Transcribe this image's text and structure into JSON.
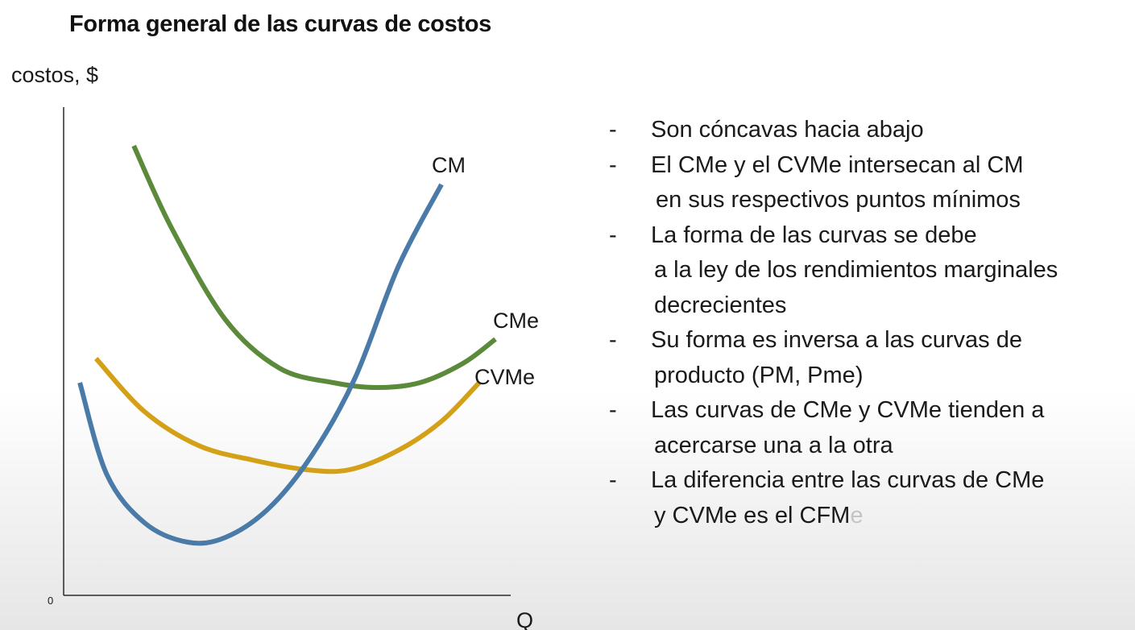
{
  "title": "Forma general de las curvas de costos",
  "chart_data": {
    "type": "line",
    "ylabel": "costos, $",
    "xlabel": "Q",
    "origin_label": "0",
    "series": [
      {
        "name": "CM",
        "color": "#4a7ba8",
        "x": [
          0.3,
          0.8,
          1.5,
          2.3,
          3.0,
          3.8,
          4.6,
          5.4,
          6.2,
          7.0
        ],
        "y": [
          4.4,
          2.5,
          1.5,
          1.1,
          1.2,
          1.8,
          2.9,
          4.5,
          6.8,
          8.5
        ]
      },
      {
        "name": "CMe",
        "color": "#5b8a3a",
        "x": [
          1.3,
          2.0,
          3.0,
          4.0,
          5.0,
          5.8,
          6.6,
          7.4,
          8.0
        ],
        "y": [
          9.3,
          7.6,
          5.7,
          4.7,
          4.4,
          4.3,
          4.4,
          4.8,
          5.3
        ]
      },
      {
        "name": "CVMe",
        "color": "#d4a017",
        "x": [
          0.6,
          1.5,
          2.5,
          3.5,
          4.5,
          5.3,
          6.2,
          7.0,
          7.7
        ],
        "y": [
          4.9,
          3.8,
          3.1,
          2.8,
          2.6,
          2.6,
          3.0,
          3.6,
          4.4
        ]
      }
    ]
  },
  "bullets": [
    {
      "dash": "-",
      "lines": [
        "Son cóncavas hacia abajo"
      ]
    },
    {
      "dash": "-",
      "lines": [
        "El CMe y el CVMe intersecan al CM",
        "en sus respectivos puntos mínimos"
      ]
    },
    {
      "dash": "-",
      "lines": [
        "La forma de las curvas se debe",
        "a la ley de los rendimientos marginales",
        "decrecientes"
      ]
    },
    {
      "dash": "-",
      "lines": [
        "Su forma es inversa a las curvas de",
        "producto (PM, Pme)"
      ]
    },
    {
      "dash": "-",
      "lines": [
        "Las curvas de CMe y CVMe tienden a",
        "acercarse una a la otra"
      ]
    },
    {
      "dash": "-",
      "lines": [
        "La diferencia entre las curvas de CMe",
        "y CVMe es el CFMe"
      ]
    }
  ]
}
